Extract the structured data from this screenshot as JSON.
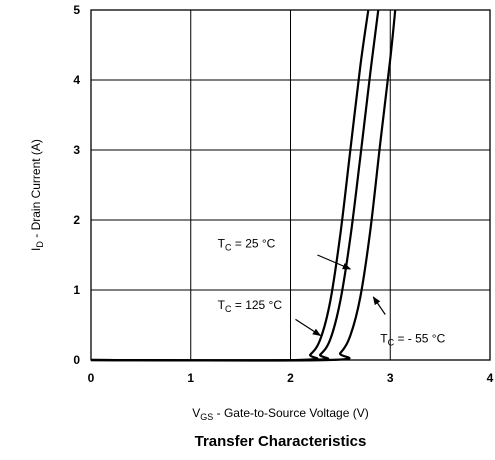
{
  "chart_data": {
    "type": "line",
    "title": "Transfer Characteristics",
    "xlabel": "V_GS - Gate-to-Source Voltage (V)",
    "ylabel": "I_D - Drain Current (A)",
    "xlim": [
      0,
      4
    ],
    "ylim": [
      0,
      5
    ],
    "x_ticks": [
      "0",
      "1",
      "2",
      "3",
      "4"
    ],
    "y_ticks": [
      "0",
      "1",
      "2",
      "3",
      "4",
      "5"
    ],
    "grid": true,
    "series": [
      {
        "name": "T_C = 125 °C",
        "color": "#000000",
        "points": [
          [
            0,
            0
          ],
          [
            2.08,
            0
          ],
          [
            2.2,
            0.08
          ],
          [
            2.3,
            0.3
          ],
          [
            2.4,
            0.85
          ],
          [
            2.5,
            1.8
          ],
          [
            2.6,
            3.0
          ],
          [
            2.7,
            4.2
          ],
          [
            2.78,
            5.0
          ]
        ]
      },
      {
        "name": "T_C = 25 °C",
        "color": "#000000",
        "points": [
          [
            0,
            0
          ],
          [
            2.18,
            0
          ],
          [
            2.3,
            0.08
          ],
          [
            2.4,
            0.3
          ],
          [
            2.5,
            0.85
          ],
          [
            2.6,
            1.75
          ],
          [
            2.7,
            2.9
          ],
          [
            2.8,
            4.1
          ],
          [
            2.88,
            5.0
          ]
        ]
      },
      {
        "name": "T_C = - 55 °C",
        "color": "#000000",
        "points": [
          [
            0,
            0
          ],
          [
            2.38,
            0
          ],
          [
            2.5,
            0.1
          ],
          [
            2.6,
            0.35
          ],
          [
            2.7,
            0.9
          ],
          [
            2.8,
            1.85
          ],
          [
            2.9,
            3.1
          ],
          [
            3.0,
            4.3
          ],
          [
            3.05,
            5.0
          ]
        ]
      }
    ],
    "annotations": [
      {
        "series": 1,
        "label_parts": [
          "T",
          "C",
          " = 25 °C"
        ],
        "text_at": [
          1.27,
          1.61
        ],
        "arrow_from": [
          2.27,
          1.5
        ],
        "arrow_to": [
          2.6,
          1.3
        ]
      },
      {
        "series": 0,
        "label_parts": [
          "T",
          "C",
          " = 125 °C"
        ],
        "text_at": [
          1.27,
          0.73
        ],
        "arrow_from": [
          2.05,
          0.58
        ],
        "arrow_to": [
          2.3,
          0.35
        ]
      },
      {
        "series": 2,
        "label_parts": [
          "T",
          "C",
          " = - 55 °C"
        ],
        "text_at": [
          2.9,
          0.25
        ],
        "arrow_from": [
          2.95,
          0.65
        ],
        "arrow_to": [
          2.83,
          0.9
        ]
      }
    ]
  }
}
